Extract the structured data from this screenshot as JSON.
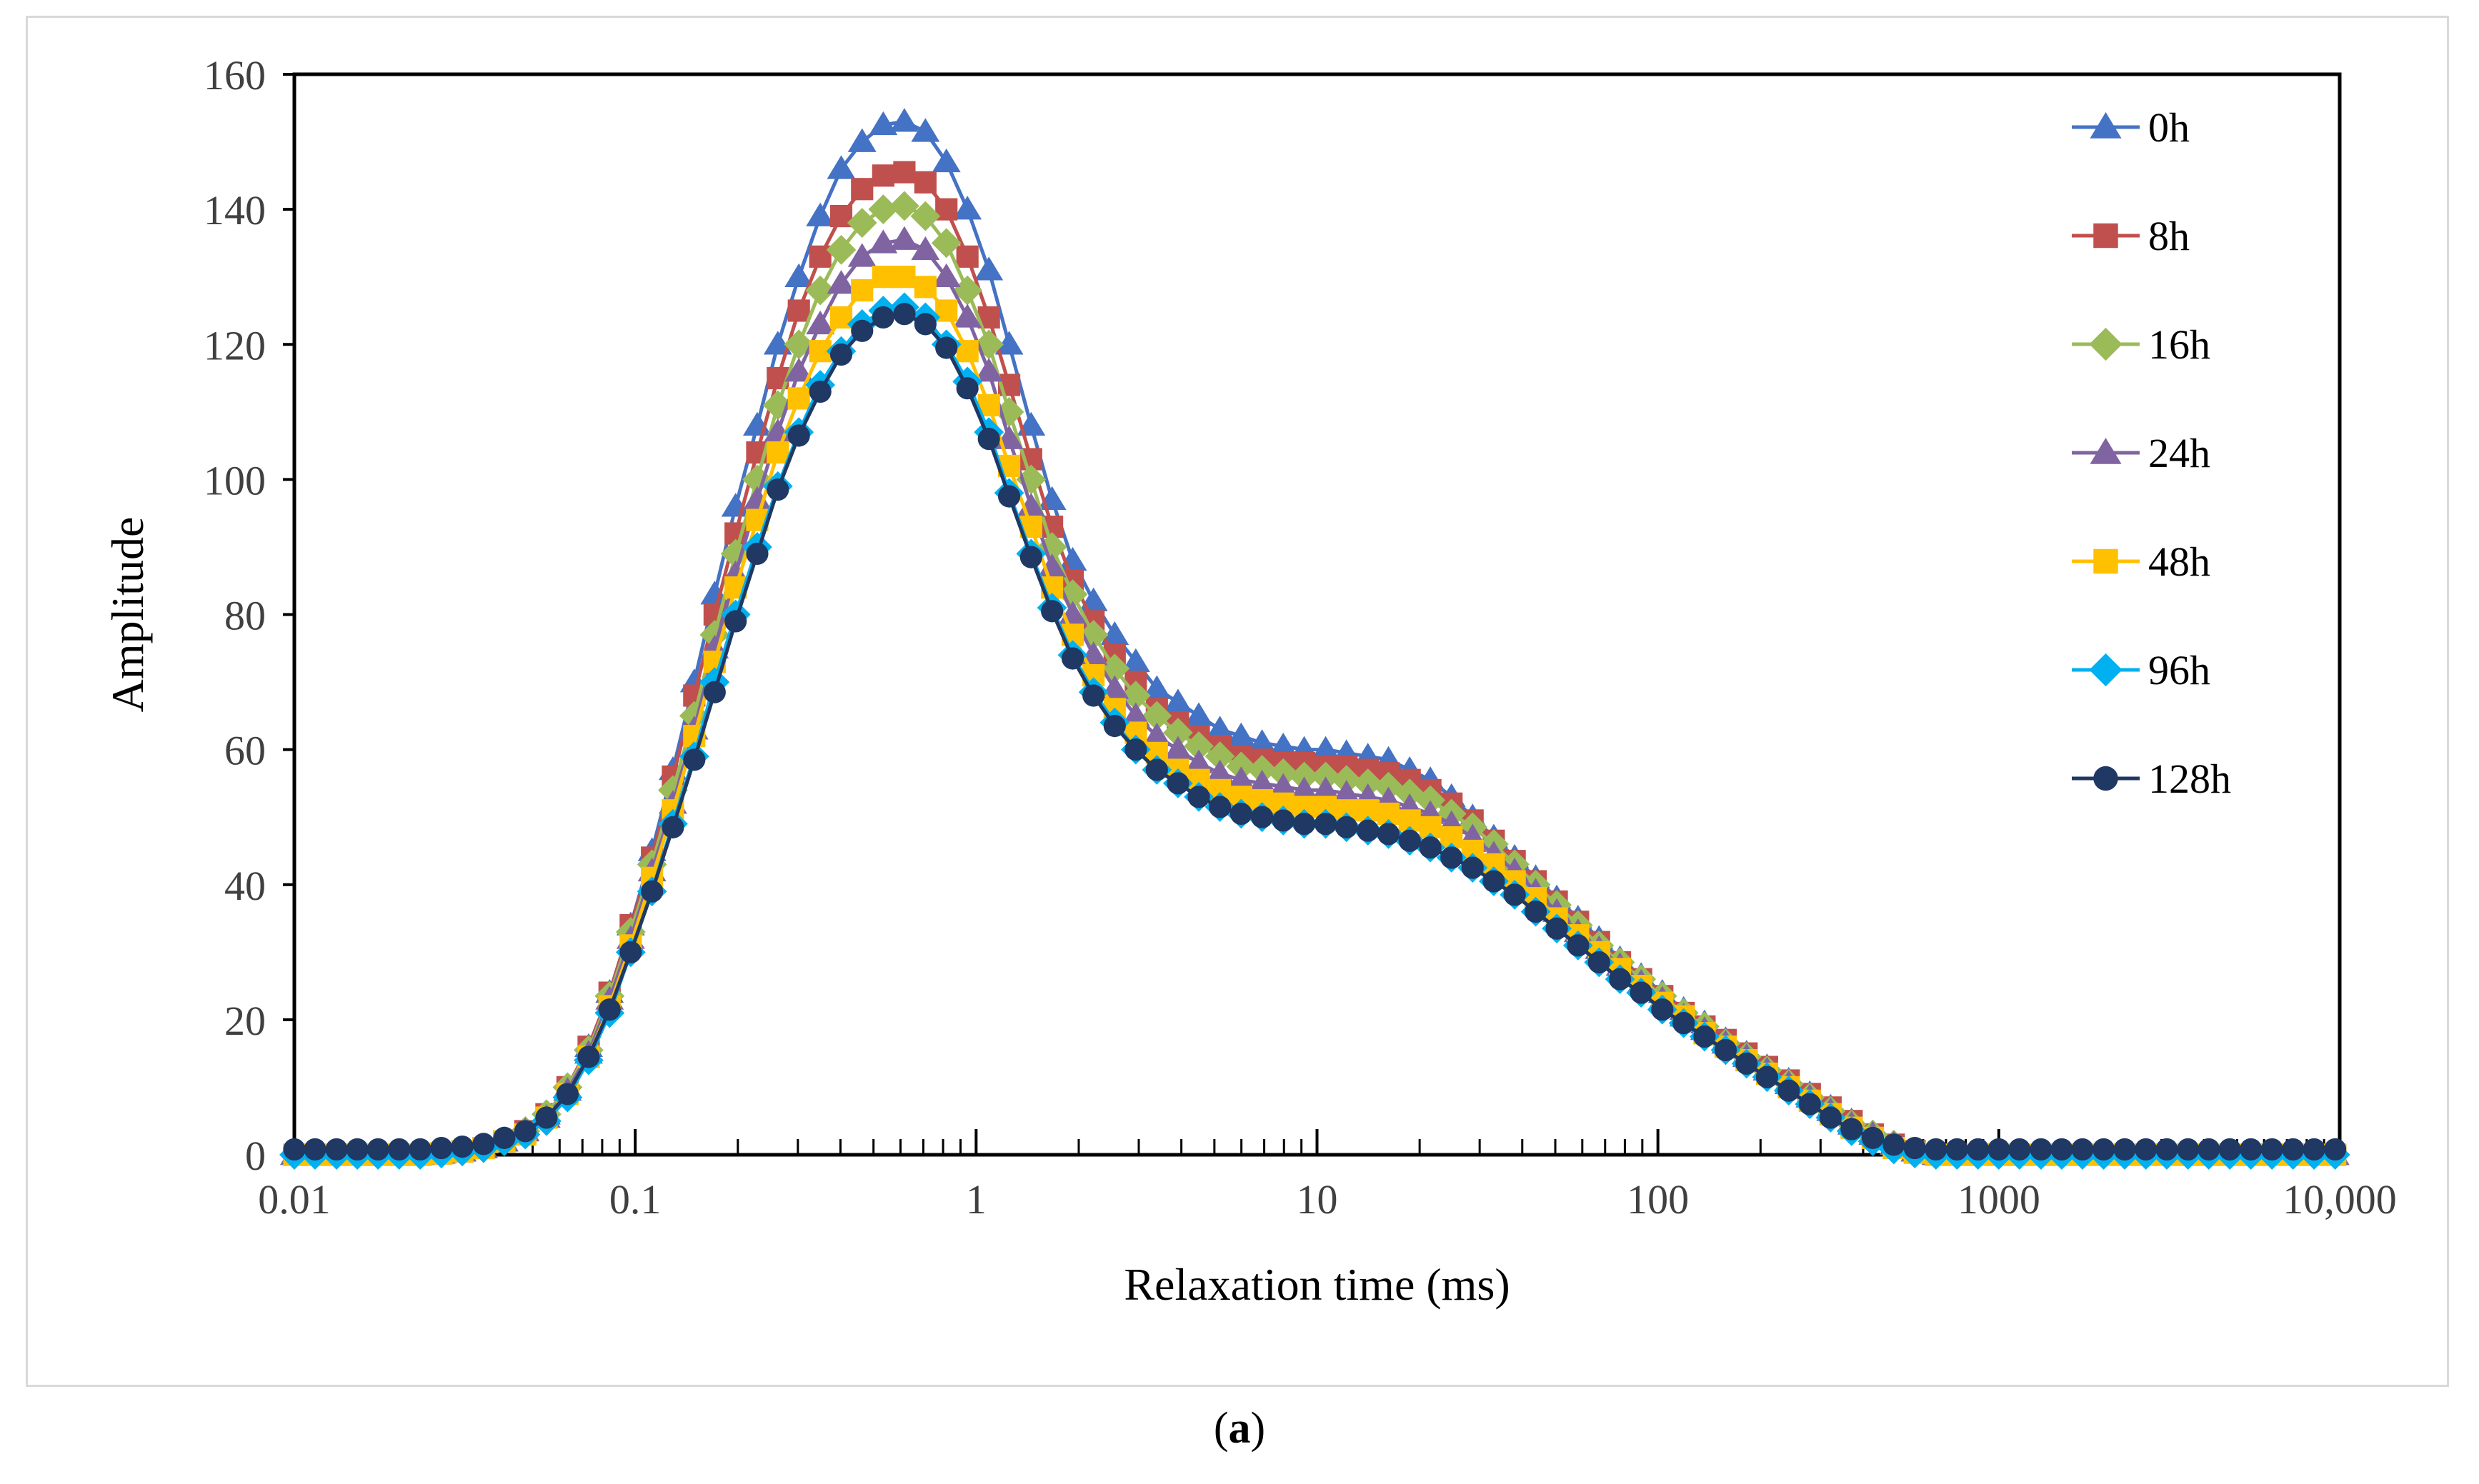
{
  "caption": {
    "open": "(",
    "letter": "a",
    "close": ")"
  },
  "chart_data": {
    "type": "line",
    "x_scale": "log",
    "xlim": [
      0.01,
      10000
    ],
    "ylim": [
      0,
      160
    ],
    "xlabel": "Relaxation time (ms)",
    "ylabel": "Amplitude",
    "x_ticks": [
      {
        "value": 0.01,
        "label": "0.01"
      },
      {
        "value": 0.1,
        "label": "0.1"
      },
      {
        "value": 1,
        "label": "1"
      },
      {
        "value": 10,
        "label": "10"
      },
      {
        "value": 100,
        "label": "100"
      },
      {
        "value": 1000,
        "label": "1000"
      },
      {
        "value": 10000,
        "label": "10,000"
      }
    ],
    "y_ticks": [
      0,
      20,
      40,
      60,
      80,
      100,
      120,
      140,
      160
    ],
    "legend_position": "top-right",
    "x": [
      0.01,
      0.0115,
      0.0133,
      0.0153,
      0.0176,
      0.0203,
      0.0234,
      0.027,
      0.0311,
      0.0359,
      0.0413,
      0.0476,
      0.0549,
      0.0633,
      0.073,
      0.0841,
      0.097,
      0.112,
      0.129,
      0.149,
      0.171,
      0.197,
      0.228,
      0.262,
      0.302,
      0.349,
      0.402,
      0.463,
      0.534,
      0.616,
      0.71,
      0.818,
      0.943,
      1.09,
      1.25,
      1.45,
      1.67,
      1.92,
      2.21,
      2.55,
      2.94,
      3.39,
      3.91,
      4.5,
      5.19,
      5.99,
      6.9,
      7.96,
      9.17,
      10.6,
      12.2,
      14.1,
      16.2,
      18.7,
      21.5,
      24.8,
      28.6,
      33,
      38,
      43.8,
      50.5,
      58.3,
      67.2,
      77.4,
      89.3,
      103,
      119,
      137,
      158,
      182,
      209,
      242,
      279,
      321,
      370,
      427,
      492,
      567,
      654,
      754,
      869,
      1000,
      1150,
      1330,
      1530,
      1760,
      2030,
      2340,
      2700,
      3110,
      3590,
      4130,
      4760,
      5490,
      6330,
      7300,
      8410,
      9700
    ],
    "series": [
      {
        "name": "0h",
        "color": "#4472c4",
        "marker": "triangle",
        "values": [
          0,
          0,
          0,
          0,
          0,
          0,
          0,
          0.2,
          0.5,
          1,
          2,
          3.5,
          6,
          10,
          16,
          24,
          34,
          45,
          57,
          70,
          83,
          96,
          108,
          120,
          130,
          139,
          146,
          150,
          152.5,
          153,
          151.5,
          147,
          140,
          131,
          120,
          108,
          97,
          88,
          82,
          77,
          73,
          69,
          67,
          65,
          63,
          62,
          61,
          60.5,
          60,
          60,
          59.5,
          59,
          58.5,
          57,
          55.5,
          53,
          50,
          47,
          44,
          41,
          38,
          35,
          32,
          29,
          26.5,
          24,
          21.5,
          19.5,
          17,
          15,
          13,
          11,
          9,
          7,
          5,
          3,
          1.5,
          0.5,
          0,
          0,
          0,
          0,
          0,
          0,
          0,
          0,
          0,
          0,
          0,
          0,
          0,
          0,
          0,
          0,
          0,
          0,
          0,
          0
        ]
      },
      {
        "name": "8h",
        "color": "#c0504d",
        "marker": "square",
        "values": [
          0,
          0,
          0,
          0,
          0,
          0,
          0,
          0.2,
          0.5,
          1,
          2,
          3.5,
          6,
          10,
          16,
          24,
          34,
          44,
          56,
          68,
          80,
          92,
          104,
          115,
          125,
          133,
          139,
          143,
          145,
          145.5,
          144,
          140,
          133,
          124,
          114,
          103,
          93,
          85,
          79,
          74,
          70,
          66,
          64,
          62,
          60.5,
          59,
          58.5,
          58,
          58,
          57.5,
          57.5,
          57,
          56.5,
          55.5,
          54,
          52,
          49.5,
          46.5,
          43.5,
          40.5,
          37.5,
          34.5,
          31.5,
          28.5,
          26,
          23.5,
          21,
          19,
          17,
          15,
          13,
          11,
          9,
          7,
          5,
          3,
          1.5,
          0.5,
          0,
          0,
          0,
          0,
          0,
          0,
          0,
          0,
          0,
          0,
          0,
          0,
          0,
          0,
          0,
          0,
          0,
          0,
          0,
          0
        ]
      },
      {
        "name": "16h",
        "color": "#9bbb59",
        "marker": "diamond",
        "values": [
          0,
          0,
          0,
          0,
          0,
          0,
          0,
          0.2,
          0.5,
          1,
          2,
          3.5,
          6,
          10,
          15.5,
          23.5,
          33,
          43,
          54,
          65,
          77,
          89,
          100,
          111,
          120,
          128,
          134,
          138,
          140,
          140.5,
          139,
          135,
          128,
          120,
          110,
          100,
          90,
          83,
          77,
          72,
          68,
          65,
          62.5,
          60.5,
          59,
          57.5,
          57,
          56.5,
          56,
          56,
          55.5,
          55,
          54.5,
          53.5,
          52.5,
          50.5,
          48.5,
          46,
          43,
          40,
          37,
          34,
          31,
          28.5,
          26,
          23.5,
          21,
          19,
          16.5,
          14.5,
          12.5,
          10.5,
          8.5,
          6.5,
          4.5,
          3,
          1.5,
          0.5,
          0,
          0,
          0,
          0,
          0,
          0,
          0,
          0,
          0,
          0,
          0,
          0,
          0,
          0,
          0,
          0,
          0,
          0,
          0,
          0
        ]
      },
      {
        "name": "24h",
        "color": "#8064a2",
        "marker": "triangle",
        "values": [
          0,
          0,
          0,
          0,
          0,
          0,
          0,
          0.2,
          0.5,
          1,
          2,
          3.5,
          5.5,
          9.5,
          15,
          23,
          32,
          42,
          52,
          63,
          75,
          86,
          97,
          107,
          116,
          123,
          129,
          133,
          135,
          135.5,
          134,
          130,
          124,
          116,
          106,
          96,
          87,
          80,
          74,
          69,
          65,
          62,
          60,
          58,
          56.5,
          55.5,
          55,
          54.5,
          54,
          54,
          53.5,
          53,
          52.5,
          51.5,
          50.5,
          49,
          47,
          44.5,
          42,
          39,
          36,
          33,
          30.5,
          28,
          25.5,
          23,
          20.5,
          18.5,
          16.5,
          14.5,
          12.5,
          10.5,
          8.5,
          6.5,
          4.5,
          3,
          1.5,
          0.5,
          0,
          0,
          0,
          0,
          0,
          0,
          0,
          0,
          0,
          0,
          0,
          0,
          0,
          0,
          0,
          0,
          0,
          0,
          0,
          0
        ]
      },
      {
        "name": "48h",
        "color": "#ffc000",
        "marker": "square",
        "values": [
          0,
          0,
          0,
          0,
          0,
          0,
          0,
          0.2,
          0.5,
          1,
          2,
          3,
          5.5,
          9,
          14.5,
          22,
          31,
          41,
          51,
          62,
          73,
          84,
          94,
          104,
          112,
          119,
          124,
          128,
          130,
          130,
          128.5,
          125,
          119,
          111,
          102,
          93,
          84,
          77,
          71,
          66,
          62.5,
          59.5,
          57,
          55.5,
          54,
          53,
          52.5,
          52,
          51.5,
          51.5,
          51,
          51,
          50.5,
          49.5,
          48.5,
          47,
          45,
          43,
          40.5,
          38,
          35,
          32.5,
          30,
          27.5,
          25,
          22.5,
          20.5,
          18,
          16,
          14,
          12,
          10,
          8,
          6,
          4,
          2.5,
          1,
          0.3,
          0,
          0,
          0,
          0,
          0,
          0,
          0,
          0,
          0,
          0,
          0,
          0,
          0,
          0,
          0,
          0,
          0,
          0,
          0,
          0
        ]
      },
      {
        "name": "96h",
        "color": "#00b0f0",
        "marker": "diamond",
        "values": [
          0,
          0,
          0,
          0,
          0,
          0,
          0,
          0.2,
          0.5,
          1,
          2,
          3,
          5,
          8.5,
          14,
          21,
          30,
          39,
          49,
          59,
          70,
          80,
          90,
          99,
          107,
          114,
          119,
          123,
          125,
          125.5,
          124,
          120,
          114.5,
          107,
          98,
          89,
          81,
          74,
          68.5,
          64,
          60,
          57,
          55,
          53,
          51.5,
          50.5,
          50,
          49.5,
          49,
          49,
          48.5,
          48,
          47.5,
          46.5,
          45.5,
          44,
          42.5,
          40.5,
          38.5,
          36,
          33.5,
          31,
          28.5,
          26,
          24,
          21.5,
          19.5,
          17.5,
          15.5,
          13.5,
          11.5,
          9.5,
          7.5,
          5.5,
          3.5,
          2,
          0.8,
          0.2,
          0,
          0,
          0,
          0,
          0,
          0,
          0,
          0,
          0,
          0,
          0,
          0,
          0,
          0,
          0,
          0,
          0,
          0,
          0,
          0
        ]
      },
      {
        "name": "128h",
        "color": "#1f3864",
        "marker": "circle",
        "values": [
          0.8,
          0.8,
          0.8,
          0.8,
          0.8,
          0.8,
          0.8,
          1,
          1.2,
          1.6,
          2.5,
          3.5,
          5.5,
          9,
          14.5,
          21.5,
          30,
          39,
          48.5,
          58.5,
          68.5,
          79,
          89,
          98.5,
          106.5,
          113,
          118.5,
          122,
          124,
          124.5,
          123,
          119.5,
          113.5,
          106,
          97.5,
          88.5,
          80.5,
          73.5,
          68,
          63.5,
          60,
          57,
          55,
          53,
          51.5,
          50.5,
          50,
          49.5,
          49,
          49,
          48.5,
          48,
          47.5,
          46.5,
          45.5,
          44,
          42.5,
          40.5,
          38.5,
          36,
          33.5,
          31,
          28.5,
          26,
          24,
          21.5,
          19.5,
          17.5,
          15.5,
          13.5,
          11.5,
          9.5,
          7.5,
          5.5,
          3.8,
          2.5,
          1.5,
          1,
          0.8,
          0.8,
          0.8,
          0.8,
          0.8,
          0.8,
          0.8,
          0.8,
          0.8,
          0.8,
          0.8,
          0.8,
          0.8,
          0.8,
          0.8,
          0.8,
          0.8,
          0.8,
          0.8,
          0.8
        ]
      }
    ]
  }
}
